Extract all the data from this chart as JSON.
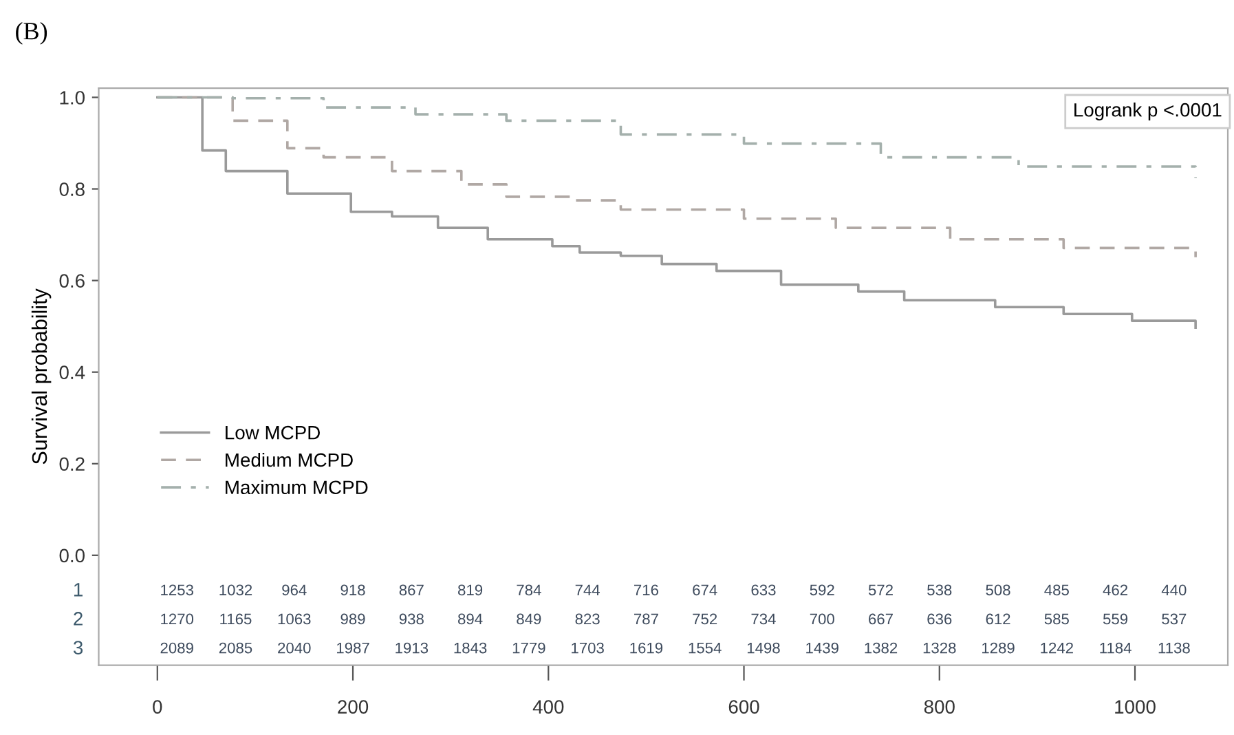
{
  "chart_data": [
    {
      "type": "step",
      "title": "(B)",
      "ylabel": "Survival probability",
      "xlim": [
        -60,
        1095
      ],
      "xticks": [
        0,
        200,
        400,
        600,
        800,
        1000
      ],
      "ylim": [
        -0.24,
        1.02
      ],
      "yticks": [
        {
          "value": 0,
          "label": "0.0"
        },
        {
          "value": 0.2,
          "label": "0.2"
        },
        {
          "value": 0.4,
          "label": "0.4"
        },
        {
          "value": 0.6,
          "label": "0.6"
        },
        {
          "value": 0.8,
          "label": "0.8"
        },
        {
          "value": 1,
          "label": "1.0"
        }
      ],
      "grid": false,
      "legend": "bottom left",
      "marker": "none",
      "series": [
        {
          "name": "Low MCPD",
          "color": "#9a9a9a",
          "line_style": "solid",
          "x": [
            0,
            20,
            46,
            70,
            133,
            198,
            240,
            287,
            338,
            404,
            432,
            474,
            516,
            572,
            638,
            717,
            764,
            857,
            927,
            997,
            1062
          ],
          "values": [
            1.0,
            1.0,
            0.884,
            0.839,
            0.79,
            0.75,
            0.74,
            0.715,
            0.69,
            0.675,
            0.661,
            0.654,
            0.636,
            0.621,
            0.591,
            0.576,
            0.557,
            0.542,
            0.527,
            0.512,
            0.497
          ]
        },
        {
          "name": "Medium MCPD",
          "color": "#b0a8a4",
          "line_style": "dashed",
          "x": [
            0,
            48,
            77,
            133,
            170,
            240,
            311,
            357,
            427,
            474,
            600,
            694,
            811,
            927,
            1062
          ],
          "values": [
            1.0,
            1.0,
            0.949,
            0.889,
            0.869,
            0.839,
            0.81,
            0.783,
            0.775,
            0.755,
            0.735,
            0.715,
            0.69,
            0.671,
            0.651
          ]
        },
        {
          "name": "Maximum MCPD",
          "color": "#a4b0ac",
          "line_style": "dashdot",
          "x": [
            0,
            48,
            77,
            170,
            264,
            357,
            474,
            600,
            740,
            881,
            1062
          ],
          "values": [
            1.0,
            1.0,
            0.998,
            0.978,
            0.963,
            0.949,
            0.919,
            0.899,
            0.869,
            0.849,
            0.824
          ]
        }
      ],
      "annotations": [
        "Logrank p <.0001"
      ]
    },
    {
      "type": "heatmap",
      "categories": [
        null,
        null,
        null,
        null,
        null,
        null,
        null,
        null,
        null,
        null,
        null,
        null,
        null,
        null,
        null,
        null,
        null,
        null
      ],
      "y_categories": [
        "1",
        "2",
        "3"
      ],
      "data_labels": true,
      "cells": [
        [
          1253,
          1032,
          964,
          918,
          867,
          819,
          784,
          744,
          716,
          674,
          633,
          592,
          572,
          538,
          508,
          485,
          462,
          440
        ],
        [
          1270,
          1165,
          1063,
          989,
          938,
          894,
          849,
          823,
          787,
          752,
          734,
          700,
          667,
          636,
          612,
          585,
          559,
          537
        ],
        [
          2089,
          2085,
          2040,
          1987,
          1913,
          1843,
          1779,
          1703,
          1619,
          1554,
          1498,
          1439,
          1382,
          1328,
          1289,
          1242,
          1184,
          1138
        ]
      ]
    }
  ]
}
